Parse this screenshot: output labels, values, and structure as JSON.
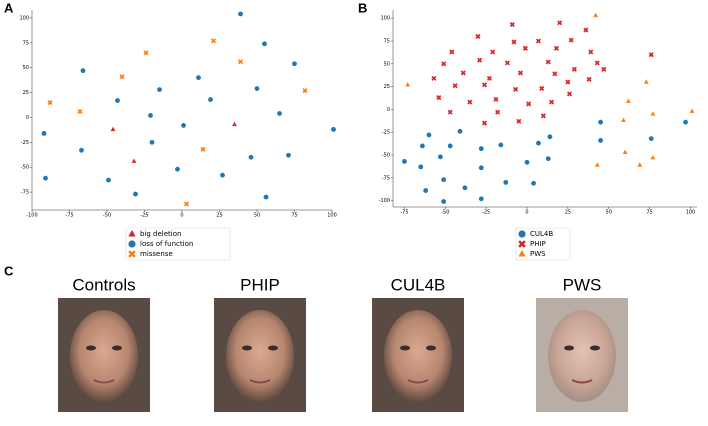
{
  "panel_labels": [
    "A",
    "B",
    "C"
  ],
  "chart_data": [
    {
      "type": "scatter",
      "xlim": [
        -100,
        100
      ],
      "ylim": [
        -93,
        108
      ],
      "xticks": [
        -100,
        -75,
        -50,
        -25,
        0,
        25,
        50,
        75,
        100
      ],
      "yticks": [
        -75,
        -50,
        -25,
        0,
        25,
        50,
        75,
        100
      ],
      "series": [
        {
          "name": "big deletion",
          "color": "#d62728",
          "marker": "triangle",
          "x": [
            -46,
            -32,
            35
          ],
          "values": [
            -12,
            -44,
            -7
          ]
        },
        {
          "name": "loss of function",
          "color": "#1f77b4",
          "marker": "circle",
          "x": [
            39,
            -66,
            55,
            75,
            11,
            -15,
            -43,
            19,
            50,
            -21,
            65,
            1,
            -92,
            -67,
            -20,
            46,
            71,
            101,
            -91,
            -49,
            -3,
            27,
            -31,
            56
          ],
          "values": [
            104,
            47,
            74,
            54,
            40,
            28,
            17,
            18,
            29,
            2,
            4,
            -8,
            -16,
            -33,
            -25,
            -40,
            -38,
            -12,
            -61,
            -63,
            -52,
            -58,
            -77,
            -80
          ]
        },
        {
          "name": "missense",
          "color": "#ff7f0e",
          "marker": "x",
          "x": [
            -24,
            21,
            39,
            -40,
            -88,
            -68,
            82,
            14,
            3
          ],
          "values": [
            65,
            77,
            56,
            41,
            15,
            6,
            27,
            -32,
            -87
          ]
        }
      ]
    },
    {
      "type": "scatter",
      "xlim": [
        -82,
        104
      ],
      "ylim": [
        -107,
        109
      ],
      "xticks": [
        -75,
        -50,
        -25,
        0,
        25,
        50,
        75,
        100
      ],
      "yticks": [
        -100,
        -75,
        -50,
        -25,
        0,
        25,
        50,
        75,
        100
      ],
      "series": [
        {
          "name": "CUL4B",
          "color": "#1f77b4",
          "marker": "circle",
          "x": [
            -60,
            -41,
            -47,
            -64,
            -53,
            -65,
            -75,
            -62,
            -51,
            -38,
            -51,
            -28,
            -28,
            -28,
            -16,
            -13,
            0,
            4,
            7,
            13,
            14,
            45,
            45,
            76,
            97
          ],
          "values": [
            -28,
            -24,
            -40,
            -40,
            -52,
            -63,
            -57,
            -89,
            -77,
            -86,
            -101,
            -98,
            -64,
            -43,
            -39,
            -80,
            -58,
            -81,
            -37,
            -54,
            -30,
            -14,
            -34,
            -32,
            -14
          ]
        },
        {
          "name": "PHIP",
          "color": "#d62728",
          "marker": "x",
          "x": [
            -9,
            20,
            36,
            -30,
            7,
            27,
            -8,
            -21,
            -1,
            18,
            39,
            -46,
            -51,
            -29,
            -12,
            13,
            43,
            76,
            -39,
            -23,
            -4,
            17,
            29,
            47,
            -57,
            -44,
            -26,
            -7,
            9,
            25,
            38,
            -54,
            -35,
            -19,
            1,
            15,
            26,
            -47,
            -18,
            -26,
            -5,
            10
          ],
          "values": [
            93,
            95,
            87,
            80,
            75,
            76,
            74,
            63,
            67,
            67,
            63,
            63,
            50,
            54,
            51,
            52,
            51,
            60,
            40,
            34,
            40,
            39,
            44,
            44,
            34,
            26,
            27,
            22,
            23,
            30,
            33,
            13,
            8,
            11,
            6,
            8,
            17,
            -3,
            -3,
            -15,
            -13,
            -7
          ]
        },
        {
          "name": "PWS",
          "color": "#ff7f0e",
          "marker": "triangle",
          "x": [
            -73,
            42,
            73,
            62,
            77,
            59,
            60,
            77,
            69,
            43,
            101
          ],
          "values": [
            27,
            103,
            30,
            9,
            -5,
            -12,
            -47,
            -53,
            -61,
            -61,
            -2
          ]
        }
      ]
    }
  ],
  "faces": [
    {
      "label": "Controls"
    },
    {
      "label": "PHIP"
    },
    {
      "label": "CUL4B"
    },
    {
      "label": "PWS"
    }
  ]
}
